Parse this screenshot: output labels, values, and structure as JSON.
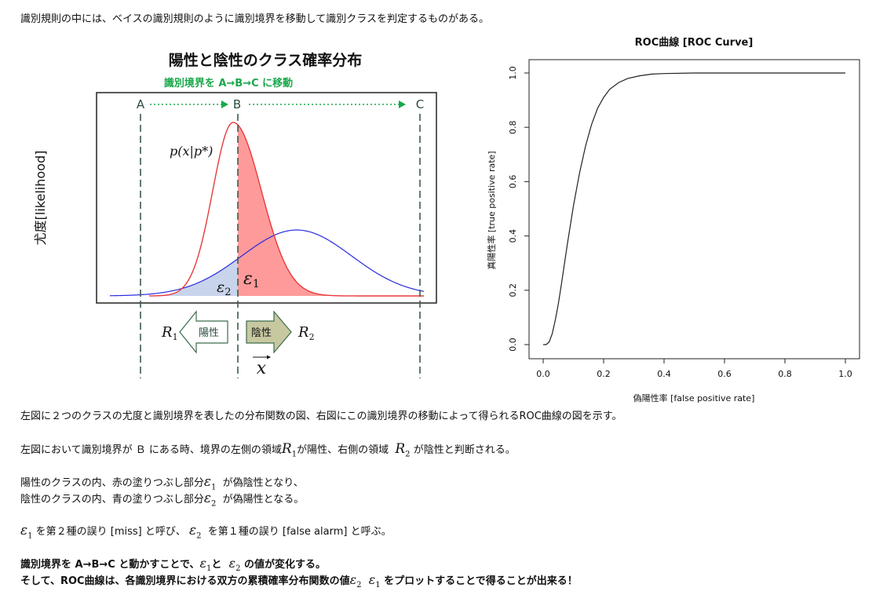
{
  "intro": "識別規則の中には、ベイスの識別規則のように識別境界を移動して識別クラスを判定するものがある。",
  "left_figure": {
    "title": "陽性と陰性のクラス確率分布",
    "subtitle": "識別境界を A→B→C に移動",
    "boundary_a": "A",
    "boundary_b": "B",
    "boundary_c": "C",
    "ylabel": "尤度[likelihood]",
    "pdf_label": "p(x|p*)",
    "eps1": "ε",
    "eps2": "ε",
    "eps_sub1": "1",
    "eps_sub2": "2",
    "r1": "R",
    "r1_sub": "1",
    "r2": "R",
    "r2_sub": "2",
    "positive_label": "陽性",
    "negative_label": "陰性",
    "x_label": "x",
    "colors": {
      "positive": "#e83a3a",
      "negative": "#2a2ae0",
      "fill_red": "#ff9a9a",
      "fill_blue": "#c8d4ec",
      "green": "#1aa84a"
    }
  },
  "chart_data": {
    "type": "line",
    "title": "ROC曲線 [ROC Curve]",
    "xlabel": "偽陽性率 [false positive rate]",
    "ylabel": "真陽性率 [true positive rate]",
    "xlim": [
      0,
      1
    ],
    "ylim": [
      0,
      1
    ],
    "x_ticks": [
      "0.0",
      "0.2",
      "0.4",
      "0.6",
      "0.8",
      "1.0"
    ],
    "y_ticks": [
      "0.0",
      "0.2",
      "0.4",
      "0.6",
      "0.8",
      "1.0"
    ],
    "series": [
      {
        "x": [
          0.0,
          0.01,
          0.02,
          0.03,
          0.04,
          0.05,
          0.06,
          0.08,
          0.1,
          0.12,
          0.14,
          0.16,
          0.18,
          0.2,
          0.22,
          0.25,
          0.28,
          0.32,
          0.36,
          0.4,
          0.5,
          0.6,
          0.8,
          1.0
        ],
        "y": [
          0.0,
          0.0,
          0.01,
          0.04,
          0.09,
          0.15,
          0.22,
          0.37,
          0.51,
          0.63,
          0.73,
          0.81,
          0.87,
          0.91,
          0.94,
          0.965,
          0.98,
          0.99,
          0.996,
          0.998,
          1.0,
          1.0,
          1.0,
          1.0
        ]
      }
    ],
    "grid": false
  },
  "body": {
    "p1": "左図に２つのクラスの尤度と識別境界を表したの分布関数の図、右図にこの識別境界の移動によって得られるROC曲線の図を示す。",
    "p2_a": "左図において識別境界が Ｂ にある時、境界の左側の領域",
    "p2_r1": "R",
    "p2_r1_sub": "1",
    "p2_b": "が陽性、右側の領域",
    "p2_r2": "R",
    "p2_r2_sub": "2",
    "p2_c": "が陰性と判断される。",
    "p3_a": "陽性のクラスの内、赤の塗りつぶし部分",
    "p3_eps": "ε",
    "p3_sub": "1",
    "p3_b": "が偽陰性となり、",
    "p4_a": "陰性のクラスの内、青の塗りつぶし部分",
    "p4_eps": "ε",
    "p4_sub": "2",
    "p4_b": "が偽陽性となる。",
    "p5_eps1": "ε",
    "p5_sub1": "1",
    "p5_a": "を第２種の誤り [miss] と呼び、",
    "p5_eps2": "ε",
    "p5_sub2": "2",
    "p5_b": "を第１種の誤り [false alarm] と呼ぶ。",
    "p6_a": "識別境界を A→B→C と動かすことで、",
    "p6_eps1": "ε",
    "p6_sub1": "1",
    "p6_b": "と",
    "p6_eps2": "ε",
    "p6_sub2": "2",
    "p6_c": "の値が変化する。",
    "p7_a": "そして、ROC曲線は、各識別境界における双方の累積確率分布関数の値",
    "p7_eps2": "ε",
    "p7_sub2": "2",
    "p7_eps1": "ε",
    "p7_sub1": "1",
    "p7_b": "をプロットすることで得ることが出来る！"
  }
}
